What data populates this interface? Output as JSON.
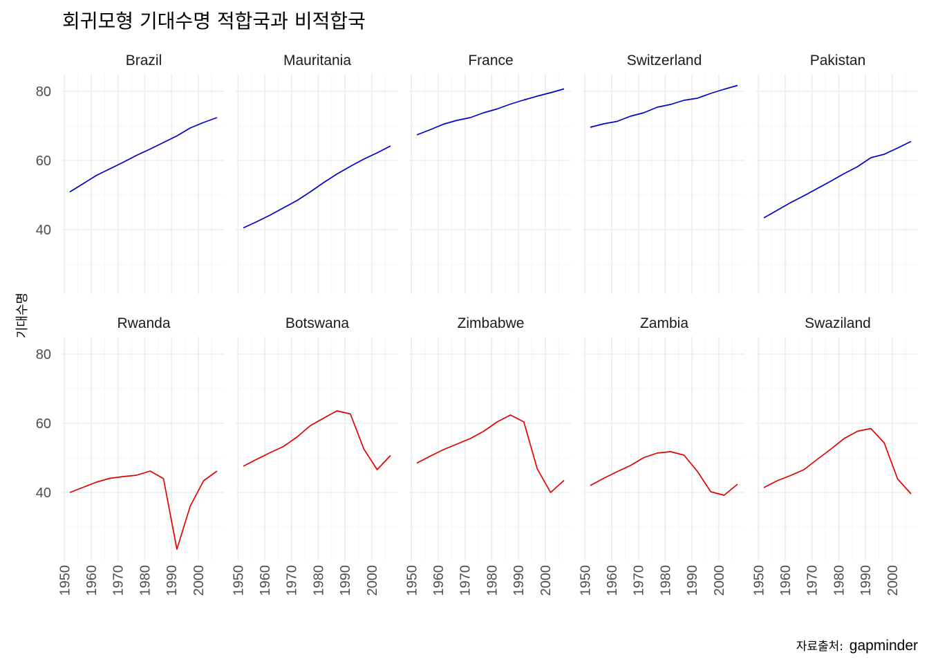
{
  "chart_data": {
    "type": "line",
    "title": "회귀모형 기대수명 적합국과 비적합국",
    "ylabel": "기대수명",
    "xlabel": "",
    "caption_prefix": "자료출처:",
    "caption_source": "gapminder",
    "xlim": [
      1952,
      2007
    ],
    "ylim": [
      23.6,
      81.8
    ],
    "x_ticks": [
      1950,
      1960,
      1970,
      1980,
      1990,
      2000
    ],
    "y_ticks": [
      40,
      60,
      80
    ],
    "colors": {
      "good_fit": "#0000cc",
      "poor_fit": "#e00000"
    },
    "grid": true,
    "x": [
      1952,
      1957,
      1962,
      1967,
      1972,
      1977,
      1982,
      1987,
      1992,
      1997,
      2002,
      2007
    ],
    "panels": [
      {
        "country": "Brazil",
        "group": "good_fit",
        "values": [
          50.9,
          53.3,
          55.7,
          57.6,
          59.5,
          61.5,
          63.3,
          65.2,
          67.1,
          69.4,
          71.0,
          72.4
        ]
      },
      {
        "country": "Mauritania",
        "group": "good_fit",
        "values": [
          40.5,
          42.3,
          44.2,
          46.3,
          48.4,
          50.9,
          53.6,
          56.1,
          58.3,
          60.4,
          62.2,
          64.2
        ]
      },
      {
        "country": "France",
        "group": "good_fit",
        "values": [
          67.4,
          68.9,
          70.5,
          71.6,
          72.4,
          73.8,
          74.9,
          76.3,
          77.5,
          78.6,
          79.6,
          80.7
        ]
      },
      {
        "country": "Switzerland",
        "group": "good_fit",
        "values": [
          69.6,
          70.6,
          71.3,
          72.8,
          73.8,
          75.4,
          76.2,
          77.4,
          78.0,
          79.4,
          80.6,
          81.7
        ]
      },
      {
        "country": "Pakistan",
        "group": "good_fit",
        "values": [
          43.4,
          45.6,
          47.8,
          49.8,
          51.9,
          54.0,
          56.2,
          58.2,
          60.8,
          61.8,
          63.6,
          65.5
        ]
      },
      {
        "country": "Rwanda",
        "group": "poor_fit",
        "values": [
          40.0,
          41.5,
          43.0,
          44.1,
          44.6,
          45.0,
          46.2,
          44.0,
          23.6,
          36.1,
          43.4,
          46.2
        ]
      },
      {
        "country": "Botswana",
        "group": "poor_fit",
        "values": [
          47.6,
          49.6,
          51.5,
          53.3,
          56.0,
          59.3,
          61.5,
          63.6,
          62.7,
          52.6,
          46.6,
          50.7
        ]
      },
      {
        "country": "Zimbabwe",
        "group": "poor_fit",
        "values": [
          48.5,
          50.5,
          52.4,
          54.0,
          55.6,
          57.7,
          60.4,
          62.4,
          60.4,
          46.8,
          40.0,
          43.5
        ]
      },
      {
        "country": "Zambia",
        "group": "poor_fit",
        "values": [
          42.0,
          44.1,
          46.0,
          47.8,
          50.1,
          51.4,
          51.8,
          50.8,
          46.1,
          40.2,
          39.2,
          42.4
        ]
      },
      {
        "country": "Swaziland",
        "group": "poor_fit",
        "values": [
          41.4,
          43.4,
          44.9,
          46.6,
          49.6,
          52.5,
          55.6,
          57.7,
          58.5,
          54.3,
          43.9,
          39.6
        ]
      }
    ]
  }
}
